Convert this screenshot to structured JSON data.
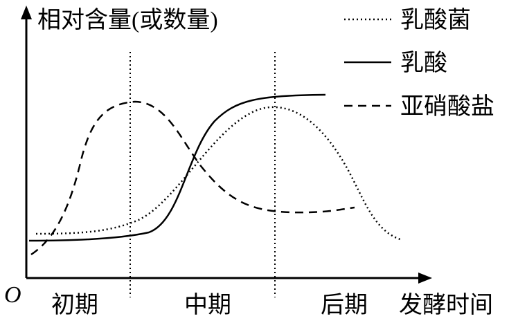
{
  "axis": {
    "y_label": "相对含量(或数量)",
    "x_label": "发酵时间",
    "origin": "O"
  },
  "stages": [
    "初期",
    "中期",
    "后期"
  ],
  "legend": [
    "乳酸菌",
    "乳酸",
    "亚硝酸盐"
  ]
}
